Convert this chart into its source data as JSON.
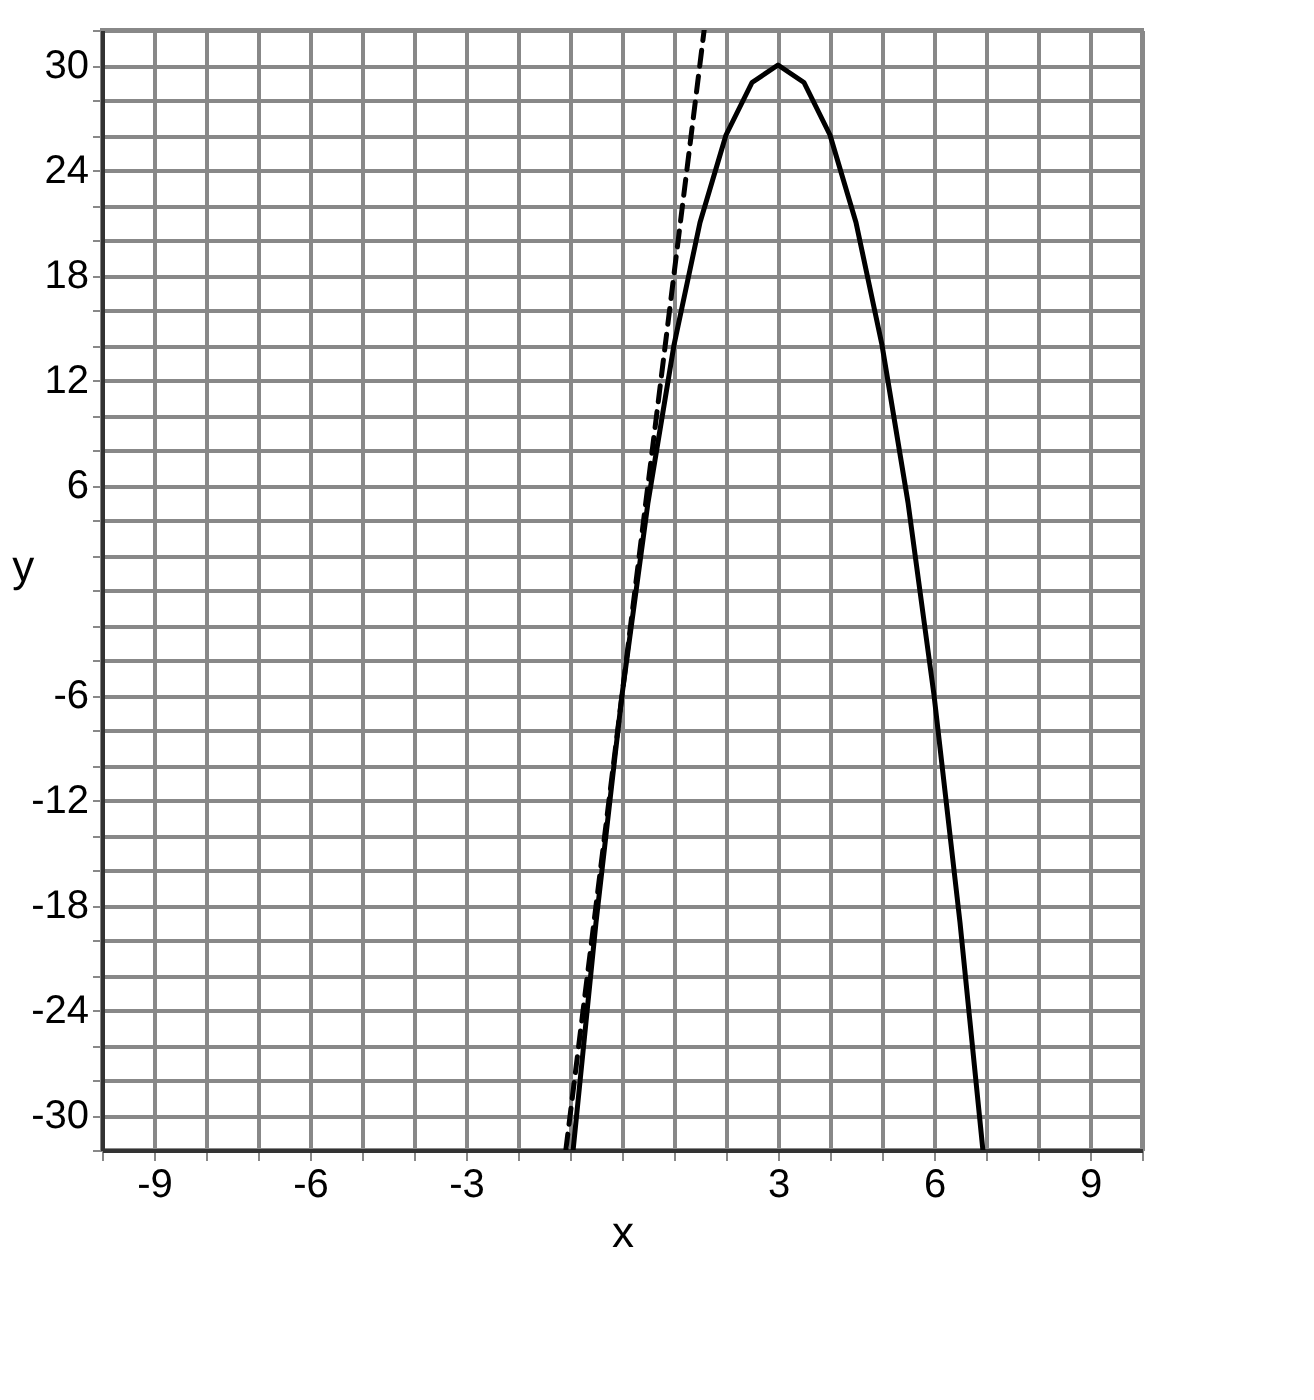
{
  "chart_data": {
    "type": "line",
    "xlabel": "x",
    "ylabel": "y",
    "xlim": [
      -10,
      10
    ],
    "ylim": [
      -32,
      32
    ],
    "xticks": [
      {
        "value": -10,
        "label": null
      },
      -9,
      {
        "value": -8,
        "label": null
      },
      {
        "value": -7,
        "label": null
      },
      -6,
      {
        "value": -5,
        "label": null
      },
      {
        "value": -4,
        "label": null
      },
      -3,
      {
        "value": -2,
        "label": null
      },
      {
        "value": -1,
        "label": null
      },
      {
        "value": 0,
        "label": null
      },
      {
        "value": 1,
        "label": null
      },
      {
        "value": 2,
        "label": null
      },
      3,
      {
        "value": 4,
        "label": null
      },
      {
        "value": 5,
        "label": null
      },
      6,
      {
        "value": 7,
        "label": null
      },
      {
        "value": 8,
        "label": null
      },
      9,
      {
        "value": 10,
        "label": null
      }
    ],
    "yticks": [
      {
        "value": -32,
        "label": null
      },
      -30,
      {
        "value": -28,
        "label": null
      },
      {
        "value": -26,
        "label": null
      },
      -24,
      {
        "value": -22,
        "label": null
      },
      {
        "value": -20,
        "label": null
      },
      -18,
      {
        "value": -16,
        "label": null
      },
      {
        "value": -14,
        "label": null
      },
      -12,
      {
        "value": -10,
        "label": null
      },
      {
        "value": -8,
        "label": null
      },
      -6,
      {
        "value": -4,
        "label": null
      },
      {
        "value": -2,
        "label": null
      },
      {
        "value": 0,
        "label": null
      },
      {
        "value": 2,
        "label": null
      },
      {
        "value": 4,
        "label": null
      },
      6,
      {
        "value": 8,
        "label": null
      },
      {
        "value": 10,
        "label": null
      },
      12,
      {
        "value": 14,
        "label": null
      },
      {
        "value": 16,
        "label": null
      },
      18,
      {
        "value": 20,
        "label": null
      },
      {
        "value": 22,
        "label": null
      },
      24,
      {
        "value": 26,
        "label": null
      },
      {
        "value": 28,
        "label": null
      },
      30,
      {
        "value": 32,
        "label": null
      }
    ],
    "grid": true,
    "marker": "none",
    "series": [
      {
        "color": "#000000",
        "line_style": "solid",
        "x": [
          -0.94,
          -0.5,
          0,
          0.5,
          1,
          1.5,
          2,
          2.5,
          3,
          3.5,
          4,
          4.5,
          5,
          5.5,
          6,
          6.5,
          6.94
        ],
        "values": [
          -32,
          -19,
          -6,
          5,
          14,
          21,
          26,
          29,
          30,
          29,
          26,
          21,
          14,
          5,
          -6,
          -19,
          -32
        ]
      },
      {
        "color": "#000000",
        "line_style": "dashed",
        "x": [
          -1.08,
          1.58
        ],
        "values": [
          -32,
          32
        ]
      }
    ]
  }
}
